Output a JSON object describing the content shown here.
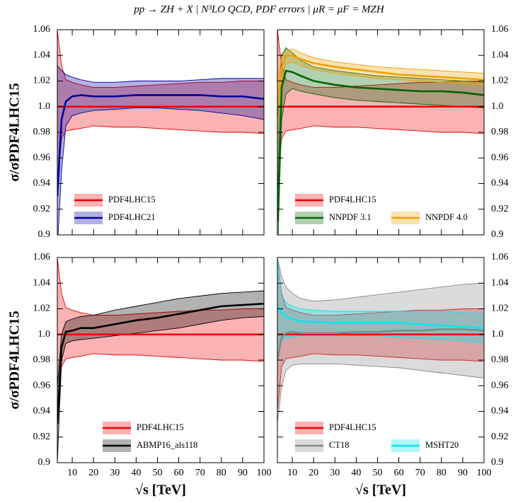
{
  "title": "pp → ZH + X | N³LO QCD, PDF errors | μR = μF = MZH",
  "chart_data": [
    {
      "type": "band",
      "ylabel": "σ/σPDF4LHC15",
      "ytick_side": "left",
      "xticklabels": false,
      "xlim": [
        3,
        100
      ],
      "ylim": [
        0.9,
        1.06
      ],
      "xticks": [
        10,
        20,
        30,
        40,
        50,
        60,
        70,
        80,
        90,
        100
      ],
      "yticks": [
        0.9,
        0.92,
        0.94,
        0.96,
        0.98,
        {
          "value": 1,
          "label": "1.0"
        },
        1.02,
        1.04,
        1.06
      ],
      "x": [
        3,
        5,
        7,
        10,
        14,
        20,
        30,
        40,
        50,
        60,
        70,
        80,
        90,
        100
      ],
      "series": [
        {
          "name": "PDF4LHC15",
          "color": "#ee0000",
          "values": [
            1,
            1,
            1,
            1,
            1,
            1,
            1,
            1,
            1,
            1,
            1,
            1,
            1,
            1
          ],
          "upper": [
            1.06,
            1.032,
            1.021,
            1.019,
            1.017,
            1.015,
            1.015,
            1.016,
            1.017,
            1.018,
            1.019,
            1.019,
            1.02,
            1.02
          ],
          "lower": [
            0.94,
            0.975,
            0.981,
            0.982,
            0.983,
            0.985,
            0.984,
            0.984,
            0.983,
            0.982,
            0.981,
            0.98,
            0.98,
            0.979
          ]
        },
        {
          "name": "PDF4LHC21",
          "color": "#0000a0",
          "values": [
            0.93,
            0.99,
            1.004,
            1.008,
            1.009,
            1.008,
            1.008,
            1.009,
            1.009,
            1.009,
            1.009,
            1.008,
            1.008,
            1.006
          ],
          "upper": [
            1.032,
            1.028,
            1.025,
            1.023,
            1.021,
            1.019,
            1.019,
            1.02,
            1.02,
            1.02,
            1.021,
            1.022,
            1.022,
            1.022
          ],
          "lower": [
            0.89,
            0.95,
            0.985,
            0.993,
            0.995,
            0.997,
            0.998,
            0.999,
            0.999,
            0.998,
            0.997,
            0.995,
            0.993,
            0.99
          ]
        }
      ]
    },
    {
      "type": "band",
      "ytick_side": "right",
      "xticklabels": false,
      "xlim": [
        3,
        100
      ],
      "ylim": [
        0.9,
        1.06
      ],
      "xticks": [
        10,
        20,
        30,
        40,
        50,
        60,
        70,
        80,
        90,
        100
      ],
      "yticks": [
        0.9,
        0.92,
        0.94,
        0.96,
        0.98,
        {
          "value": 1,
          "label": "1.0"
        },
        1.02,
        1.04,
        1.06
      ],
      "x": [
        3,
        5,
        7,
        10,
        14,
        20,
        30,
        40,
        50,
        60,
        70,
        80,
        90,
        100
      ],
      "series": [
        {
          "name": "PDF4LHC15",
          "color": "#ee0000",
          "values": [
            1,
            1,
            1,
            1,
            1,
            1,
            1,
            1,
            1,
            1,
            1,
            1,
            1,
            1
          ],
          "upper": [
            1.06,
            1.032,
            1.021,
            1.019,
            1.017,
            1.015,
            1.015,
            1.016,
            1.017,
            1.018,
            1.019,
            1.019,
            1.02,
            1.02
          ],
          "lower": [
            0.94,
            0.975,
            0.981,
            0.982,
            0.983,
            0.985,
            0.984,
            0.984,
            0.983,
            0.982,
            0.981,
            0.98,
            0.98,
            0.979
          ]
        },
        {
          "name": "NNPDF 3.1",
          "color": "#006400",
          "values": [
            0.91,
            1.015,
            1.028,
            1.027,
            1.024,
            1.02,
            1.017,
            1.015,
            1.014,
            1.013,
            1.012,
            1.012,
            1.011,
            1.009
          ],
          "upper": [
            0.99,
            1.04,
            1.046,
            1.042,
            1.036,
            1.031,
            1.028,
            1.026,
            1.024,
            1.023,
            1.022,
            1.021,
            1.02,
            1.019
          ],
          "lower": [
            0.88,
            0.99,
            1.01,
            1.014,
            1.012,
            1.01,
            1.007,
            1.005,
            1.004,
            1.003,
            1.002,
            1.001,
            1.0,
            0.999
          ]
        },
        {
          "name": "NNPDF 4.0",
          "color": "#f0a000",
          "values": [
            1.0,
            1.03,
            1.04,
            1.04,
            1.037,
            1.034,
            1.031,
            1.029,
            1.027,
            1.025,
            1.024,
            1.023,
            1.022,
            1.021
          ],
          "upper": [
            1.02,
            1.038,
            1.044,
            1.045,
            1.042,
            1.038,
            1.035,
            1.033,
            1.031,
            1.03,
            1.029,
            1.028,
            1.027,
            1.026
          ],
          "lower": [
            0.98,
            1.02,
            1.033,
            1.035,
            1.032,
            1.029,
            1.026,
            1.024,
            1.022,
            1.021,
            1.02,
            1.019,
            1.018,
            1.017
          ]
        }
      ]
    },
    {
      "type": "band",
      "ylabel": "σ/σPDF4LHC15",
      "xlabel": "√s [TeV]",
      "ytick_side": "left",
      "xticklabels": true,
      "xlim": [
        3,
        100
      ],
      "ylim": [
        0.9,
        1.06
      ],
      "xticks": [
        10,
        20,
        30,
        40,
        50,
        60,
        70,
        80,
        90,
        100
      ],
      "yticks": [
        0.9,
        0.92,
        0.94,
        0.96,
        0.98,
        {
          "value": 1,
          "label": "1.0"
        },
        1.02,
        1.04,
        1.06
      ],
      "x": [
        3,
        5,
        7,
        10,
        14,
        20,
        30,
        40,
        50,
        60,
        70,
        80,
        90,
        100
      ],
      "series": [
        {
          "name": "PDF4LHC15",
          "color": "#ee0000",
          "values": [
            1,
            1,
            1,
            1,
            1,
            1,
            1,
            1,
            1,
            1,
            1,
            1,
            1,
            1
          ],
          "upper": [
            1.06,
            1.032,
            1.021,
            1.019,
            1.017,
            1.015,
            1.015,
            1.016,
            1.017,
            1.018,
            1.019,
            1.019,
            1.02,
            1.02
          ],
          "lower": [
            0.94,
            0.975,
            0.981,
            0.982,
            0.983,
            0.985,
            0.984,
            0.984,
            0.983,
            0.982,
            0.981,
            0.98,
            0.98,
            0.979
          ]
        },
        {
          "name": "ABMP16_als118",
          "color": "#000000",
          "values": [
            0.93,
            0.99,
            1.002,
            1.003,
            1.005,
            1.005,
            1.008,
            1.011,
            1.013,
            1.016,
            1.019,
            1.022,
            1.023,
            1.024
          ],
          "upper": [
            0.96,
            1.0,
            1.01,
            1.012,
            1.014,
            1.015,
            1.019,
            1.022,
            1.025,
            1.028,
            1.03,
            1.032,
            1.033,
            1.034
          ],
          "lower": [
            0.9,
            0.98,
            0.993,
            0.995,
            0.996,
            0.997,
            0.999,
            1.001,
            1.003,
            1.005,
            1.008,
            1.011,
            1.013,
            1.014
          ]
        }
      ]
    },
    {
      "type": "band",
      "xlabel": "√s [TeV]",
      "ytick_side": "right",
      "xticklabels": true,
      "xlim": [
        3,
        100
      ],
      "ylim": [
        0.9,
        1.06
      ],
      "xticks": [
        10,
        20,
        30,
        40,
        50,
        60,
        70,
        80,
        90,
        100
      ],
      "yticks": [
        0.9,
        0.92,
        0.94,
        0.96,
        0.98,
        {
          "value": 1,
          "label": "1.0"
        },
        1.02,
        1.04,
        1.06
      ],
      "x": [
        3,
        5,
        7,
        10,
        14,
        20,
        30,
        40,
        50,
        60,
        70,
        80,
        90,
        100
      ],
      "series": [
        {
          "name": "PDF4LHC15",
          "color": "#ee0000",
          "values": [
            1,
            1,
            1,
            1,
            1,
            1,
            1,
            1,
            1,
            1,
            1,
            1,
            1,
            1
          ],
          "upper": [
            1.06,
            1.032,
            1.021,
            1.019,
            1.017,
            1.015,
            1.015,
            1.016,
            1.017,
            1.018,
            1.019,
            1.019,
            1.02,
            1.02
          ],
          "lower": [
            0.94,
            0.975,
            0.981,
            0.982,
            0.983,
            0.985,
            0.984,
            0.984,
            0.983,
            0.982,
            0.981,
            0.98,
            0.98,
            0.979
          ]
        },
        {
          "name": "CT18",
          "color": "#888888",
          "values": [
            0.98,
            0.998,
            1.001,
            1.002,
            1.001,
            1.001,
            1.001,
            1.002,
            1.002,
            1.003,
            1.003,
            1.004,
            1.004,
            1.003
          ],
          "upper": [
            1.06,
            1.045,
            1.037,
            1.032,
            1.028,
            1.026,
            1.027,
            1.029,
            1.031,
            1.033,
            1.035,
            1.037,
            1.039,
            1.04
          ],
          "lower": [
            0.93,
            0.96,
            0.972,
            0.976,
            0.977,
            0.977,
            0.977,
            0.976,
            0.975,
            0.974,
            0.972,
            0.97,
            0.968,
            0.966
          ]
        },
        {
          "name": "MSHT20",
          "color": "#00e8f0",
          "values": [
            1.022,
            1.017,
            1.014,
            1.012,
            1.01,
            1.01,
            1.009,
            1.009,
            1.009,
            1.009,
            1.008,
            1.007,
            1.006,
            1.005
          ],
          "upper": [
            1.06,
            1.03,
            1.025,
            1.022,
            1.02,
            1.019,
            1.018,
            1.018,
            1.018,
            1.018,
            1.018,
            1.018,
            1.017,
            1.016
          ],
          "lower": [
            0.99,
            0.995,
            0.997,
            0.998,
            0.999,
            0.999,
            0.999,
            0.999,
            0.999,
            0.998,
            0.997,
            0.996,
            0.995,
            0.993
          ]
        }
      ]
    }
  ]
}
